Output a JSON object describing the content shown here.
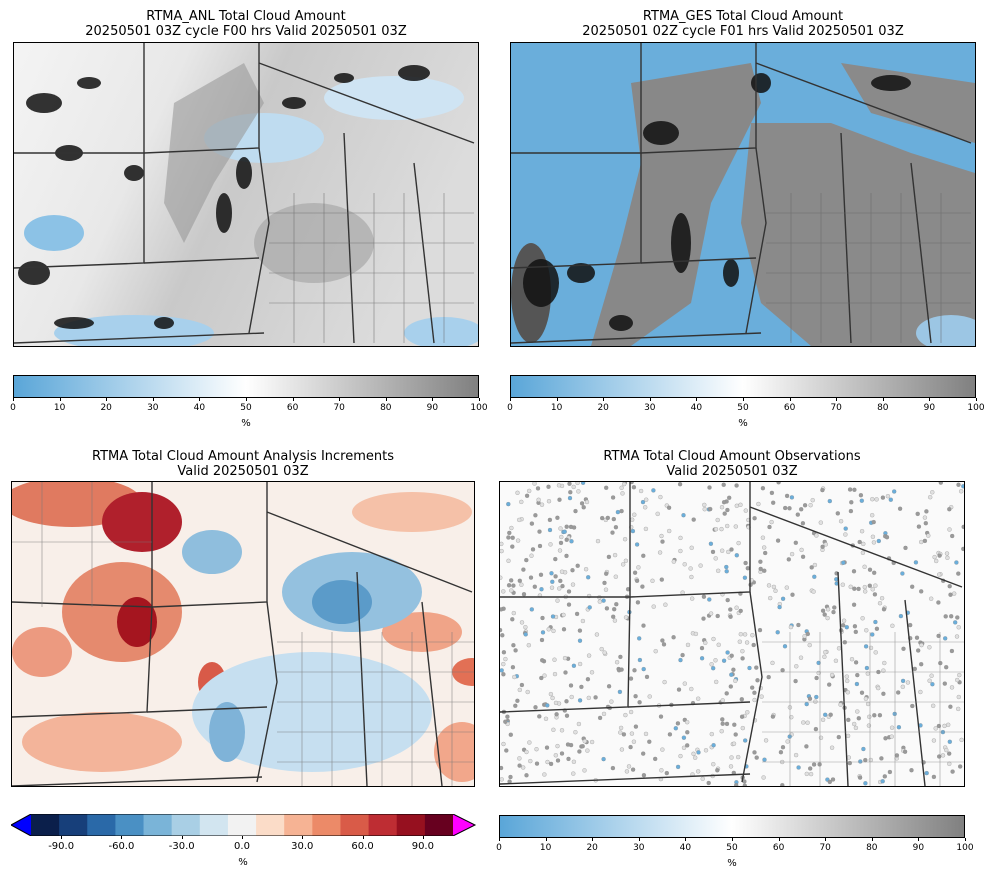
{
  "panels": {
    "anl": {
      "title_line1": "RTMA_ANL Total Cloud Amount",
      "title_line2": "20250501 03Z cycle F00 hrs Valid 20250501 03Z",
      "colorbar": {
        "ticks": [
          "0",
          "10",
          "20",
          "30",
          "40",
          "50",
          "60",
          "70",
          "80",
          "90",
          "100"
        ],
        "unit": "%",
        "colors": [
          "#5aa6d8",
          "#ffffff",
          "#808080"
        ]
      }
    },
    "ges": {
      "title_line1": "RTMA_GES Total Cloud Amount",
      "title_line2": "20250501 02Z cycle F01 hrs Valid 20250501 03Z",
      "colorbar": {
        "ticks": [
          "0",
          "10",
          "20",
          "30",
          "40",
          "50",
          "60",
          "70",
          "80",
          "90",
          "100"
        ],
        "unit": "%",
        "colors": [
          "#5aa6d8",
          "#ffffff",
          "#808080"
        ]
      }
    },
    "inc": {
      "title_line1": "RTMA Total Cloud Amount Analysis Increments",
      "title_line2": "Valid 20250501 03Z",
      "colorbar": {
        "ticks": [
          "-90.0",
          "-60.0",
          "-30.0",
          "0.0",
          "30.0",
          "60.0",
          "90.0"
        ],
        "unit": "%",
        "under_color": "#0000ff",
        "over_color": "#ff00ff",
        "colors": [
          "#0b1f4b",
          "#173f7a",
          "#2a69a8",
          "#4a90c4",
          "#7ab4d8",
          "#a9cfe5",
          "#d2e5f0",
          "#f2f2f2",
          "#fbdcc8",
          "#f6b394",
          "#ec8a68",
          "#d95b48",
          "#be2d33",
          "#96101f",
          "#67001f"
        ]
      }
    },
    "obs": {
      "title_line1": "RTMA Total Cloud Amount Observations",
      "title_line2": "Valid 20250501 03Z",
      "colorbar": {
        "ticks": [
          "0",
          "10",
          "20",
          "30",
          "40",
          "50",
          "60",
          "70",
          "80",
          "90",
          "100"
        ],
        "unit": "%",
        "colors": [
          "#5aa6d8",
          "#ffffff",
          "#808080"
        ]
      }
    }
  }
}
